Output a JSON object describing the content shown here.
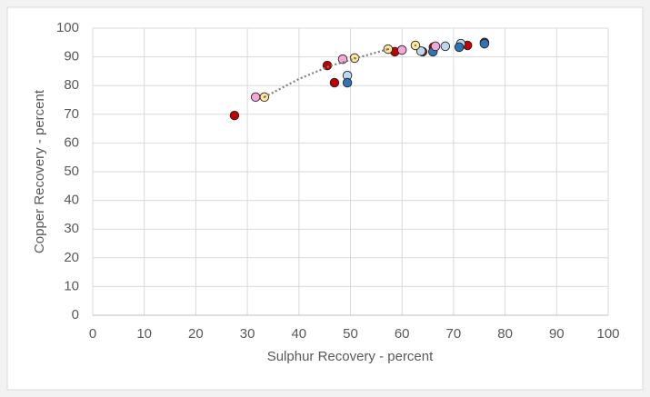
{
  "chart_data": {
    "type": "scatter",
    "x_label": "Sulphur Recovery - percent",
    "y_label": "Copper Recovery - percent",
    "xlim": [
      0,
      100
    ],
    "xticks": [
      0,
      10,
      20,
      30,
      40,
      50,
      60,
      70,
      80,
      90,
      100
    ],
    "ylim": [
      0,
      100
    ],
    "yticks": [
      0,
      10,
      20,
      30,
      40,
      50,
      60,
      70,
      80,
      90,
      100
    ],
    "grid": true,
    "series": [
      {
        "color": "#c00000",
        "x": [
          27.5,
          45.5,
          46.9,
          58.6,
          64,
          66.1,
          72.7,
          76
        ],
        "values": [
          69.6,
          87,
          81,
          91.8,
          91.8,
          93.4,
          94,
          95
        ]
      },
      {
        "color": "#bdd7ee",
        "x": [
          49.4,
          63.7,
          68.4,
          71.4
        ],
        "values": [
          83.5,
          92,
          93.7,
          94.6
        ]
      },
      {
        "color": "#2e75b6",
        "x": [
          49.4,
          66,
          71.1,
          76
        ],
        "values": [
          81,
          91.8,
          93.4,
          94.6
        ]
      },
      {
        "color": "#f4a6d7",
        "x": [
          31.6,
          48.5,
          60,
          66.5
        ],
        "values": [
          76,
          89.2,
          92.4,
          93.7
        ]
      },
      {
        "color": "#ffe699",
        "marker_dot": true,
        "x": [
          33.3,
          50.8,
          57.3,
          62.6
        ],
        "values": [
          76,
          89.6,
          92.7,
          94
        ],
        "trendline": {
          "color": "#7f7f7f",
          "x": [
            33.3,
            40,
            46,
            50.8,
            55,
            57.3
          ],
          "values": [
            76,
            82.3,
            86.8,
            89.4,
            91.5,
            92.7
          ]
        }
      }
    ]
  }
}
